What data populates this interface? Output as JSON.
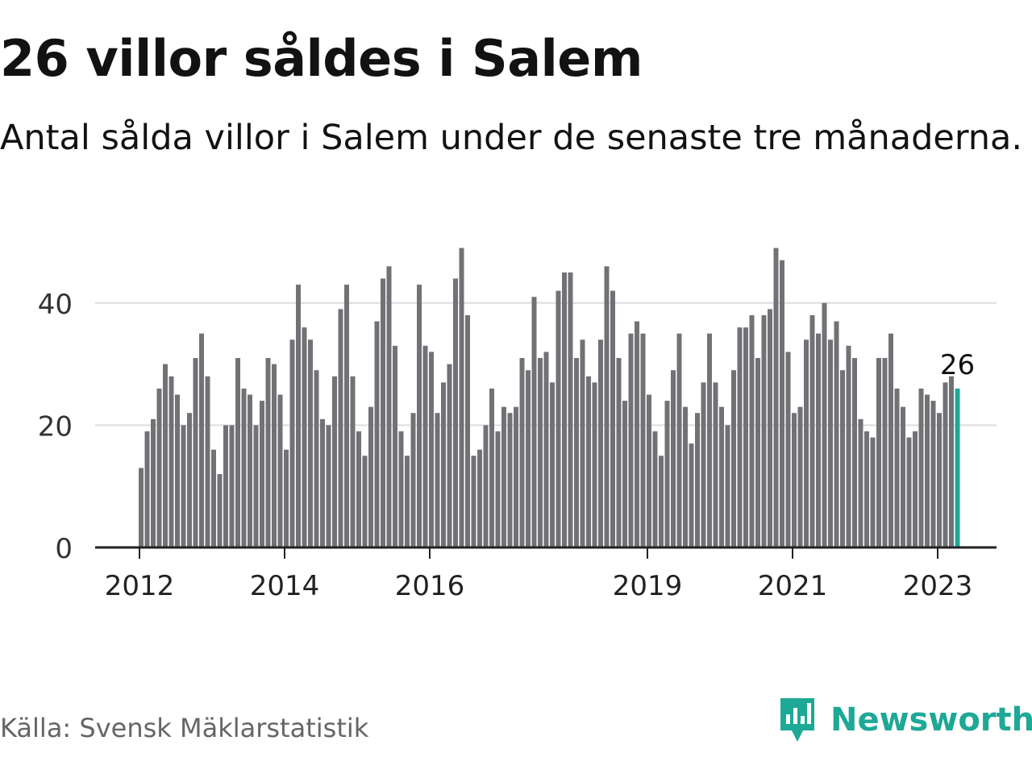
{
  "title": "26 villor såldes i Salem",
  "subtitle": "Antal sålda villor i Salem under de senaste tre månaderna.",
  "source": "Källa: Svensk Mäklarstatistik",
  "brand": {
    "name": "Newsworthy",
    "icon": "newsworthy-logo-icon",
    "color": "#1ea896"
  },
  "colors": {
    "bar": "#727176",
    "highlight": "#1ea896",
    "grid": "#dddddd",
    "axis": "#222222"
  },
  "chart_data": {
    "type": "bar",
    "title": "26 villor såldes i Salem",
    "xlabel": "",
    "ylabel": "",
    "ylim": [
      0,
      50
    ],
    "yticks": [
      0,
      20,
      40
    ],
    "grid": true,
    "x_ticks": [
      {
        "label": "2012",
        "index": 0
      },
      {
        "label": "2014",
        "index": 24
      },
      {
        "label": "2016",
        "index": 48
      },
      {
        "label": "2019",
        "index": 84
      },
      {
        "label": "2021",
        "index": 108
      },
      {
        "label": "2023",
        "index": 132
      }
    ],
    "highlight": {
      "index": 135,
      "value": 26,
      "label": "26"
    },
    "values": [
      13,
      19,
      21,
      26,
      30,
      28,
      25,
      20,
      22,
      31,
      35,
      28,
      16,
      12,
      20,
      20,
      31,
      26,
      25,
      20,
      24,
      31,
      30,
      25,
      16,
      34,
      43,
      36,
      34,
      29,
      21,
      20,
      28,
      39,
      43,
      28,
      19,
      15,
      23,
      37,
      44,
      46,
      33,
      19,
      15,
      22,
      43,
      33,
      32,
      22,
      27,
      30,
      44,
      49,
      38,
      15,
      16,
      20,
      26,
      19,
      23,
      22,
      23,
      31,
      29,
      41,
      31,
      32,
      27,
      42,
      45,
      45,
      31,
      34,
      28,
      27,
      34,
      46,
      42,
      31,
      24,
      35,
      37,
      35,
      25,
      19,
      15,
      24,
      29,
      35,
      23,
      17,
      22,
      27,
      35,
      27,
      23,
      20,
      29,
      36,
      36,
      38,
      31,
      38,
      39,
      49,
      47,
      32,
      22,
      23,
      34,
      38,
      35,
      40,
      34,
      37,
      29,
      33,
      31,
      21,
      19,
      18,
      31,
      31,
      35,
      26,
      23,
      18,
      19,
      26,
      25,
      24,
      22,
      27,
      28,
      26
    ]
  }
}
